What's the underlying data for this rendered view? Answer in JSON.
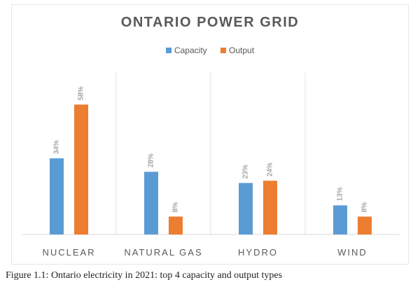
{
  "chart_data": {
    "type": "bar",
    "title": "ONTARIO POWER GRID",
    "categories": [
      "NUCLEAR",
      "NATURAL GAS",
      "HYDRO",
      "WIND"
    ],
    "series": [
      {
        "name": "Capacity",
        "color": "#5b9bd5",
        "values": [
          34,
          28,
          23,
          13
        ]
      },
      {
        "name": "Output",
        "color": "#ed7d31",
        "values": [
          58,
          8,
          24,
          8
        ]
      }
    ],
    "value_suffix": "%",
    "ylim": [
      0,
      60
    ],
    "legend_position": "top",
    "grid": "vertical category separators"
  },
  "caption": "Figure 1.1: Ontario electricity in 2021: top 4 capacity and output types"
}
